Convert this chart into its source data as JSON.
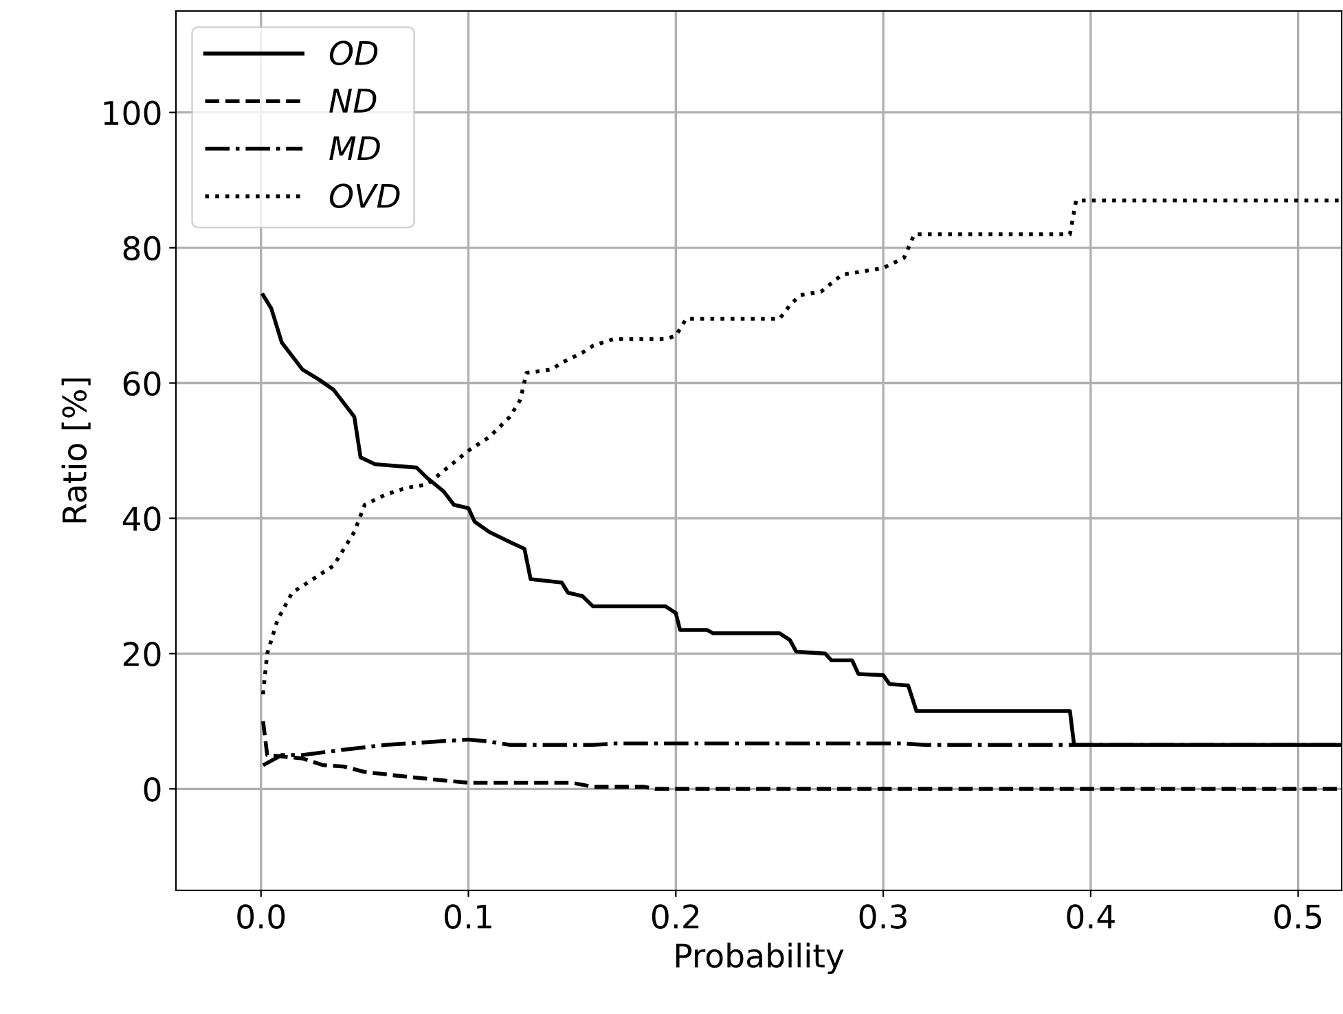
{
  "chart_data": {
    "type": "line",
    "xlabel": "Probability",
    "ylabel": "Ratio [%]",
    "xlim": [
      -0.041,
      0.521
    ],
    "ylim": [
      -15,
      115
    ],
    "xticks": [
      {
        "value": 0.0,
        "label": "0.0"
      },
      0.1,
      0.2,
      0.3,
      0.4,
      0.5
    ],
    "yticks": [
      0,
      20,
      40,
      60,
      80,
      100
    ],
    "grid": true,
    "legend": "top left",
    "series": [
      {
        "name": "OD",
        "color": "#000000",
        "line_style": "solid",
        "x": [
          0.001,
          0.005,
          0.01,
          0.02,
          0.028,
          0.035,
          0.045,
          0.048,
          0.055,
          0.075,
          0.08,
          0.088,
          0.093,
          0.1,
          0.103,
          0.11,
          0.12,
          0.127,
          0.13,
          0.145,
          0.148,
          0.155,
          0.16,
          0.195,
          0.2,
          0.202,
          0.215,
          0.218,
          0.25,
          0.255,
          0.258,
          0.272,
          0.275,
          0.285,
          0.288,
          0.3,
          0.303,
          0.312,
          0.316,
          0.39,
          0.392,
          0.521
        ],
        "values": [
          73,
          71,
          66,
          62,
          60.5,
          59,
          55,
          49,
          48,
          47.5,
          46,
          44,
          42,
          41.5,
          39.5,
          38,
          36.5,
          35.5,
          31,
          30.5,
          29,
          28.5,
          27,
          27,
          26,
          23.5,
          23.5,
          23,
          23,
          22,
          20.3,
          20,
          19,
          19,
          17,
          16.8,
          15.5,
          15.3,
          11.5,
          11.5,
          6.5,
          6.5
        ]
      },
      {
        "name": "ND",
        "color": "#000000",
        "line_style": "dashed",
        "x": [
          0.001,
          0.003,
          0.02,
          0.03,
          0.04,
          0.05,
          0.07,
          0.09,
          0.1,
          0.15,
          0.16,
          0.185,
          0.19,
          0.521
        ],
        "values": [
          10,
          5,
          4.5,
          3.5,
          3.3,
          2.5,
          1.8,
          1.2,
          0.9,
          0.9,
          0.3,
          0.3,
          0,
          0
        ]
      },
      {
        "name": "MD",
        "color": "#000000",
        "line_style": "dashdot",
        "x": [
          0.001,
          0.01,
          0.02,
          0.04,
          0.06,
          0.1,
          0.11,
          0.12,
          0.16,
          0.17,
          0.31,
          0.32,
          0.521
        ],
        "values": [
          3.5,
          5,
          5,
          5.8,
          6.5,
          7.3,
          7,
          6.5,
          6.5,
          6.7,
          6.7,
          6.5,
          6.5
        ]
      },
      {
        "name": "OVD",
        "color": "#000000",
        "line_style": "dotted",
        "x": [
          0.001,
          0.003,
          0.008,
          0.015,
          0.025,
          0.035,
          0.045,
          0.05,
          0.06,
          0.07,
          0.08,
          0.09,
          0.1,
          0.11,
          0.12,
          0.125,
          0.128,
          0.14,
          0.145,
          0.155,
          0.16,
          0.17,
          0.195,
          0.2,
          0.205,
          0.25,
          0.255,
          0.26,
          0.27,
          0.28,
          0.29,
          0.3,
          0.31,
          0.315,
          0.39,
          0.393,
          0.521
        ],
        "values": [
          14,
          20,
          25,
          29,
          31,
          33,
          38,
          42,
          43.5,
          44.5,
          45,
          47.5,
          50,
          52,
          55,
          57.5,
          61.5,
          62,
          63,
          64.5,
          65.5,
          66.5,
          66.5,
          67,
          69.5,
          69.5,
          71.5,
          73,
          73.5,
          76,
          76.5,
          77,
          78.5,
          82,
          82,
          87,
          87
        ]
      }
    ]
  }
}
